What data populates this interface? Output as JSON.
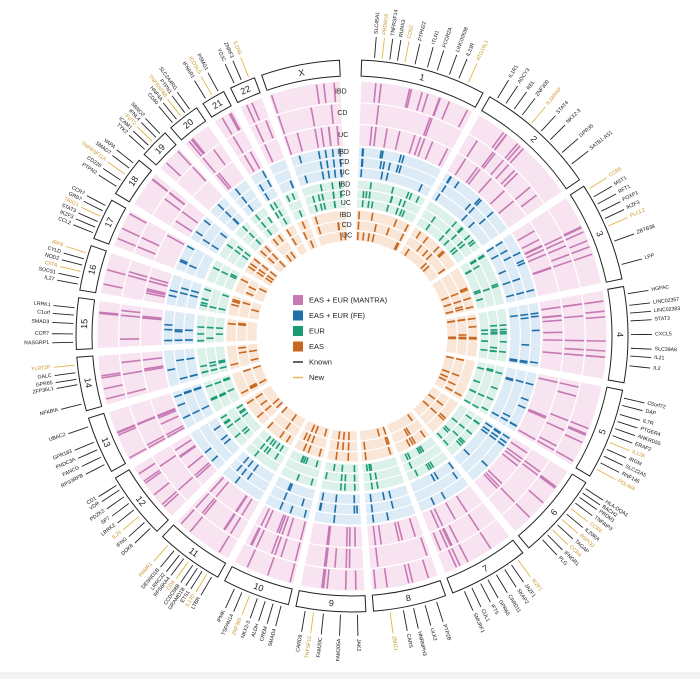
{
  "chromosomes": [
    "1",
    "2",
    "3",
    "4",
    "5",
    "6",
    "7",
    "8",
    "9",
    "10",
    "11",
    "12",
    "13",
    "14",
    "15",
    "16",
    "17",
    "18",
    "19",
    "20",
    "21",
    "22",
    "X"
  ],
  "chrom_sizes": [
    249,
    242,
    198,
    190,
    181,
    171,
    159,
    145,
    138,
    134,
    135,
    133,
    114,
    107,
    102,
    90,
    83,
    80,
    59,
    64,
    47,
    51,
    156
  ],
  "track_labels": [
    "IBD",
    "CD",
    "UC"
  ],
  "legend": [
    {
      "label": "EAS + EUR (MANTRA)",
      "color": "#c679b4"
    },
    {
      "label": "EAS + EUR (FE)",
      "color": "#1f6fa8"
    },
    {
      "label": "EUR",
      "color": "#1d9b77"
    },
    {
      "label": "EAS",
      "color": "#c8671f"
    },
    {
      "label": "Known",
      "color": "#222222",
      "kind": "line"
    },
    {
      "label": "New",
      "color": "#e0b74a",
      "kind": "line"
    }
  ],
  "ring_colors": {
    "mantra": "#c679b4",
    "mantra_bg": "#f8e4f0",
    "fe": "#1f6fa8",
    "fe_bg": "#dcebf6",
    "eur": "#1d9b77",
    "eur_bg": "#dcf1ea",
    "eas": "#c8671f",
    "eas_bg": "#f9e6d7"
  },
  "gene_labels": [
    {
      "chrom": 1,
      "pos": 0.1,
      "text": "SLC45A1",
      "new": false
    },
    {
      "chrom": 1,
      "pos": 0.16,
      "text": "PRDM16",
      "new": true
    },
    {
      "chrom": 1,
      "pos": 0.22,
      "text": "TNFRSF14",
      "new": false
    },
    {
      "chrom": 1,
      "pos": 0.28,
      "text": "RUNX3",
      "new": false
    },
    {
      "chrom": 1,
      "pos": 0.34,
      "text": "CD52",
      "new": true
    },
    {
      "chrom": 1,
      "pos": 0.42,
      "text": "PTPN22",
      "new": false
    },
    {
      "chrom": 1,
      "pos": 0.52,
      "text": "ITLN1",
      "new": false
    },
    {
      "chrom": 1,
      "pos": 0.6,
      "text": "FCGR2A",
      "new": false
    },
    {
      "chrom": 1,
      "pos": 0.7,
      "text": "LINC00538",
      "new": false
    },
    {
      "chrom": 1,
      "pos": 0.78,
      "text": "IL23R",
      "new": false
    },
    {
      "chrom": 1,
      "pos": 0.86,
      "text": "ATG16L1",
      "new": true
    },
    {
      "chrom": 2,
      "pos": 0.06,
      "text": "IL1R1",
      "new": false
    },
    {
      "chrom": 2,
      "pos": 0.14,
      "text": "ADCY3",
      "new": false
    },
    {
      "chrom": 2,
      "pos": 0.22,
      "text": "REL",
      "new": false
    },
    {
      "chrom": 2,
      "pos": 0.3,
      "text": "ZNF300",
      "new": false
    },
    {
      "chrom": 2,
      "pos": 0.4,
      "text": "IL18RAP",
      "new": true
    },
    {
      "chrom": 2,
      "pos": 0.5,
      "text": "STAT4",
      "new": false
    },
    {
      "chrom": 2,
      "pos": 0.6,
      "text": "NKX2-3",
      "new": false
    },
    {
      "chrom": 2,
      "pos": 0.74,
      "text": "GPR35",
      "new": false
    },
    {
      "chrom": 2,
      "pos": 0.86,
      "text": "SATB1-AS1",
      "new": false
    },
    {
      "chrom": 3,
      "pos": 0.05,
      "text": "CCR6",
      "new": true
    },
    {
      "chrom": 3,
      "pos": 0.14,
      "text": "MST1",
      "new": false
    },
    {
      "chrom": 3,
      "pos": 0.22,
      "text": "RFT1",
      "new": false
    },
    {
      "chrom": 3,
      "pos": 0.3,
      "text": "FOXP1",
      "new": false
    },
    {
      "chrom": 3,
      "pos": 0.38,
      "text": "IKZF3",
      "new": false
    },
    {
      "chrom": 3,
      "pos": 0.46,
      "text": "PLCL2",
      "new": true
    },
    {
      "chrom": 3,
      "pos": 0.62,
      "text": "ZBTB38",
      "new": false
    },
    {
      "chrom": 3,
      "pos": 0.86,
      "text": "LPP",
      "new": false
    },
    {
      "chrom": 4,
      "pos": 0.08,
      "text": "HGFAC",
      "new": false
    },
    {
      "chrom": 4,
      "pos": 0.2,
      "text": "LINC02357",
      "new": false
    },
    {
      "chrom": 4,
      "pos": 0.28,
      "text": "LINC02383",
      "new": false
    },
    {
      "chrom": 4,
      "pos": 0.36,
      "text": "STAT3",
      "new": false
    },
    {
      "chrom": 4,
      "pos": 0.5,
      "text": "CXCL5",
      "new": false
    },
    {
      "chrom": 4,
      "pos": 0.64,
      "text": "SLC39A8",
      "new": false
    },
    {
      "chrom": 4,
      "pos": 0.72,
      "text": "IL21",
      "new": false
    },
    {
      "chrom": 4,
      "pos": 0.82,
      "text": "IL2",
      "new": false
    },
    {
      "chrom": 5,
      "pos": 0.08,
      "text": "C5orf72",
      "new": false
    },
    {
      "chrom": 5,
      "pos": 0.16,
      "text": "DAP",
      "new": false
    },
    {
      "chrom": 5,
      "pos": 0.26,
      "text": "IL7R",
      "new": false
    },
    {
      "chrom": 5,
      "pos": 0.34,
      "text": "PTGER4",
      "new": false
    },
    {
      "chrom": 5,
      "pos": 0.42,
      "text": "ANKRD55",
      "new": false
    },
    {
      "chrom": 5,
      "pos": 0.5,
      "text": "ERAP2",
      "new": false
    },
    {
      "chrom": 5,
      "pos": 0.58,
      "text": "IL12B",
      "new": true
    },
    {
      "chrom": 5,
      "pos": 0.66,
      "text": "IRGM",
      "new": false
    },
    {
      "chrom": 5,
      "pos": 0.74,
      "text": "SLC22A5",
      "new": false
    },
    {
      "chrom": 5,
      "pos": 0.82,
      "text": "RNF145",
      "new": false
    },
    {
      "chrom": 5,
      "pos": 0.9,
      "text": "PDLIM4",
      "new": true
    },
    {
      "chrom": 6,
      "pos": 0.06,
      "text": "HLA-DQA1",
      "new": false
    },
    {
      "chrom": 6,
      "pos": 0.12,
      "text": "BACH2",
      "new": false
    },
    {
      "chrom": 6,
      "pos": 0.18,
      "text": "PRDM1",
      "new": false
    },
    {
      "chrom": 6,
      "pos": 0.26,
      "text": "TNFAIP3",
      "new": false
    },
    {
      "chrom": 6,
      "pos": 0.34,
      "text": "CCR6",
      "new": true
    },
    {
      "chrom": 6,
      "pos": 0.42,
      "text": "IL20RA",
      "new": false
    },
    {
      "chrom": 6,
      "pos": 0.5,
      "text": "RSPO3",
      "new": true
    },
    {
      "chrom": 6,
      "pos": 0.58,
      "text": "TAGAP",
      "new": false
    },
    {
      "chrom": 6,
      "pos": 0.66,
      "text": "CCR4",
      "new": true
    },
    {
      "chrom": 6,
      "pos": 0.74,
      "text": "IFNGR1",
      "new": false
    },
    {
      "chrom": 6,
      "pos": 0.82,
      "text": "PLG",
      "new": false
    },
    {
      "chrom": 7,
      "pos": 0.1,
      "text": "IKZF1",
      "new": true
    },
    {
      "chrom": 7,
      "pos": 0.2,
      "text": "JAZF1",
      "new": false
    },
    {
      "chrom": 7,
      "pos": 0.3,
      "text": "SKAP2",
      "new": false
    },
    {
      "chrom": 7,
      "pos": 0.42,
      "text": "CARD11",
      "new": false
    },
    {
      "chrom": 7,
      "pos": 0.54,
      "text": "GPR65",
      "new": false
    },
    {
      "chrom": 7,
      "pos": 0.64,
      "text": "IFT5",
      "new": false
    },
    {
      "chrom": 7,
      "pos": 0.76,
      "text": "CUL1",
      "new": false
    },
    {
      "chrom": 7,
      "pos": 0.86,
      "text": "SMURF1",
      "new": false
    },
    {
      "chrom": 8,
      "pos": 0.14,
      "text": "PTP2B",
      "new": false
    },
    {
      "chrom": 8,
      "pos": 0.3,
      "text": "ULK2",
      "new": false
    },
    {
      "chrom": 8,
      "pos": 0.46,
      "text": "HNRNPH3",
      "new": false
    },
    {
      "chrom": 8,
      "pos": 0.6,
      "text": "CARS",
      "new": false
    },
    {
      "chrom": 8,
      "pos": 0.78,
      "text": "ZMIZ1",
      "new": true
    },
    {
      "chrom": 9,
      "pos": 0.12,
      "text": "JAK2",
      "new": false
    },
    {
      "chrom": 9,
      "pos": 0.36,
      "text": "FAM205A",
      "new": false
    },
    {
      "chrom": 9,
      "pos": 0.6,
      "text": "FAM20C",
      "new": false
    },
    {
      "chrom": 9,
      "pos": 0.74,
      "text": "TNFSF15",
      "new": true
    },
    {
      "chrom": 9,
      "pos": 0.86,
      "text": "CARD9",
      "new": false
    },
    {
      "chrom": 10,
      "pos": 0.1,
      "text": "SMAD4",
      "new": false
    },
    {
      "chrom": 10,
      "pos": 0.22,
      "text": "CREM",
      "new": false
    },
    {
      "chrom": 10,
      "pos": 0.34,
      "text": "ALDH",
      "new": false
    },
    {
      "chrom": 10,
      "pos": 0.46,
      "text": "NKX2-3",
      "new": false
    },
    {
      "chrom": 10,
      "pos": 0.58,
      "text": "ZNF365",
      "new": true
    },
    {
      "chrom": 10,
      "pos": 0.7,
      "text": "TSPAN14",
      "new": false
    },
    {
      "chrom": 10,
      "pos": 0.82,
      "text": "IPMK",
      "new": false
    },
    {
      "chrom": 11,
      "pos": 0.08,
      "text": "LTBR",
      "new": false
    },
    {
      "chrom": 11,
      "pos": 0.16,
      "text": "IL17D",
      "new": true
    },
    {
      "chrom": 11,
      "pos": 0.24,
      "text": "ETS1",
      "new": false
    },
    {
      "chrom": 11,
      "pos": 0.32,
      "text": "GRAMD1B",
      "new": false
    },
    {
      "chrom": 11,
      "pos": 0.4,
      "text": "CCDC88B",
      "new": false
    },
    {
      "chrom": 11,
      "pos": 0.48,
      "text": "CD6",
      "new": true
    },
    {
      "chrom": 11,
      "pos": 0.56,
      "text": "RPS6KA4",
      "new": false
    },
    {
      "chrom": 11,
      "pos": 0.64,
      "text": "LRRC32",
      "new": false
    },
    {
      "chrom": 11,
      "pos": 0.74,
      "text": "DENND1B",
      "new": false
    },
    {
      "chrom": 11,
      "pos": 0.86,
      "text": "PAMR1",
      "new": true
    },
    {
      "chrom": 12,
      "pos": 0.1,
      "text": "DOK8",
      "new": false
    },
    {
      "chrom": 12,
      "pos": 0.22,
      "text": "IFNG",
      "new": false
    },
    {
      "chrom": 12,
      "pos": 0.34,
      "text": "IL26",
      "new": true
    },
    {
      "chrom": 12,
      "pos": 0.46,
      "text": "LRRK2",
      "new": false
    },
    {
      "chrom": 12,
      "pos": 0.58,
      "text": "SP7",
      "new": false
    },
    {
      "chrom": 12,
      "pos": 0.7,
      "text": "PDZK2",
      "new": false
    },
    {
      "chrom": 12,
      "pos": 0.82,
      "text": "VDR",
      "new": false
    },
    {
      "chrom": 12,
      "pos": 0.9,
      "text": "CD1",
      "new": false
    },
    {
      "chrom": 13,
      "pos": 0.16,
      "text": "RPS3RPB",
      "new": false
    },
    {
      "chrom": 13,
      "pos": 0.3,
      "text": "FANCG",
      "new": false
    },
    {
      "chrom": 13,
      "pos": 0.44,
      "text": "FNDC3A",
      "new": false
    },
    {
      "chrom": 13,
      "pos": 0.58,
      "text": "GPR183",
      "new": false
    },
    {
      "chrom": 13,
      "pos": 0.86,
      "text": "UBAC2",
      "new": false
    },
    {
      "chrom": 14,
      "pos": 0.14,
      "text": "NFKBIA",
      "new": false
    },
    {
      "chrom": 14,
      "pos": 0.5,
      "text": "ZFP36L1",
      "new": false
    },
    {
      "chrom": 14,
      "pos": 0.6,
      "text": "GPR65",
      "new": false
    },
    {
      "chrom": 14,
      "pos": 0.72,
      "text": "GALC",
      "new": false
    },
    {
      "chrom": 14,
      "pos": 0.86,
      "text": "FLRT2P",
      "new": true
    },
    {
      "chrom": 15,
      "pos": 0.14,
      "text": "RASGRP1",
      "new": false
    },
    {
      "chrom": 15,
      "pos": 0.3,
      "text": "CCR7",
      "new": false
    },
    {
      "chrom": 15,
      "pos": 0.5,
      "text": "SMAD3",
      "new": false
    },
    {
      "chrom": 15,
      "pos": 0.66,
      "text": "C1orf",
      "new": false
    },
    {
      "chrom": 15,
      "pos": 0.8,
      "text": "LRRK1",
      "new": false
    },
    {
      "chrom": 16,
      "pos": 0.12,
      "text": "IL27",
      "new": false
    },
    {
      "chrom": 16,
      "pos": 0.26,
      "text": "SOCS1",
      "new": false
    },
    {
      "chrom": 16,
      "pos": 0.4,
      "text": "CIITA",
      "new": true
    },
    {
      "chrom": 16,
      "pos": 0.54,
      "text": "NOD2",
      "new": false
    },
    {
      "chrom": 16,
      "pos": 0.68,
      "text": "CYLD",
      "new": false
    },
    {
      "chrom": 16,
      "pos": 0.82,
      "text": "IRF8",
      "new": true
    },
    {
      "chrom": 17,
      "pos": 0.12,
      "text": "CCL2",
      "new": false
    },
    {
      "chrom": 17,
      "pos": 0.26,
      "text": "IKZF3",
      "new": false
    },
    {
      "chrom": 17,
      "pos": 0.4,
      "text": "STAT3",
      "new": false
    },
    {
      "chrom": 17,
      "pos": 0.54,
      "text": "TBX21",
      "new": true
    },
    {
      "chrom": 17,
      "pos": 0.68,
      "text": "GRB7",
      "new": false
    },
    {
      "chrom": 17,
      "pos": 0.82,
      "text": "CCR7",
      "new": false
    },
    {
      "chrom": 18,
      "pos": 0.16,
      "text": "PTPN2",
      "new": false
    },
    {
      "chrom": 18,
      "pos": 0.34,
      "text": "CD226",
      "new": false
    },
    {
      "chrom": 18,
      "pos": 0.52,
      "text": "TNFRSF11A",
      "new": true
    },
    {
      "chrom": 18,
      "pos": 0.7,
      "text": "SMAD7",
      "new": false
    },
    {
      "chrom": 18,
      "pos": 0.86,
      "text": "VAPA",
      "new": false
    },
    {
      "chrom": 19,
      "pos": 0.14,
      "text": "TYK2",
      "new": false
    },
    {
      "chrom": 19,
      "pos": 0.32,
      "text": "ICAM1",
      "new": false
    },
    {
      "chrom": 19,
      "pos": 0.5,
      "text": "FUT2",
      "new": true
    },
    {
      "chrom": 19,
      "pos": 0.68,
      "text": "IFNL4",
      "new": false
    },
    {
      "chrom": 19,
      "pos": 0.86,
      "text": "SBNO2",
      "new": false
    },
    {
      "chrom": 20,
      "pos": 0.14,
      "text": "CD40",
      "new": false
    },
    {
      "chrom": 20,
      "pos": 0.3,
      "text": "HNF4A",
      "new": false
    },
    {
      "chrom": 20,
      "pos": 0.46,
      "text": "TNFRSF6B",
      "new": true
    },
    {
      "chrom": 20,
      "pos": 0.62,
      "text": "PTPN1",
      "new": false
    },
    {
      "chrom": 20,
      "pos": 0.8,
      "text": "SLC2A4RG",
      "new": false
    },
    {
      "chrom": 21,
      "pos": 0.2,
      "text": "IFNAR1",
      "new": false
    },
    {
      "chrom": 21,
      "pos": 0.5,
      "text": "ICOSLG",
      "new": true
    },
    {
      "chrom": 21,
      "pos": 0.8,
      "text": "PSMG1",
      "new": false
    },
    {
      "chrom": 22,
      "pos": 0.2,
      "text": "YDJC",
      "new": false
    },
    {
      "chrom": 22,
      "pos": 0.5,
      "text": "ZNRF3",
      "new": false
    },
    {
      "chrom": 22,
      "pos": 0.8,
      "text": "IL2RB",
      "new": true
    }
  ]
}
